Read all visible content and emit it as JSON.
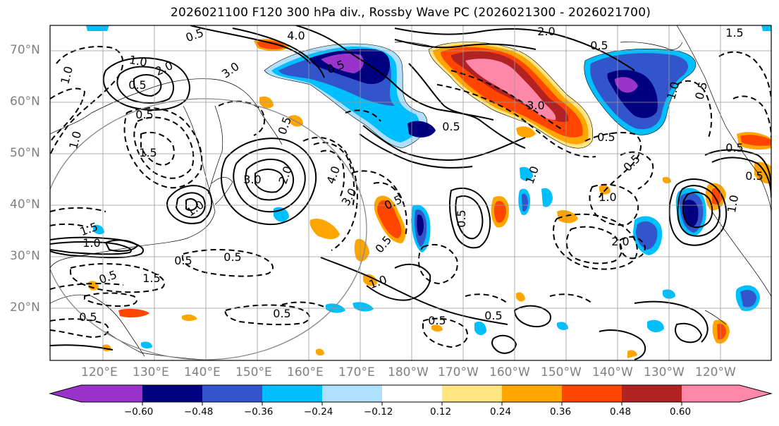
{
  "title": "2026021100 F120 300 hPa div., Rossby Wave PC (2026021300 - 2026021700)",
  "lat_labels": [
    "70°N",
    "60°N",
    "50°N",
    "40°N",
    "30°N",
    "20°N"
  ],
  "lon_labels": [
    "120°E",
    "130°E",
    "140°E",
    "150°E",
    "160°E",
    "170°E",
    "180°W",
    "170°W",
    "160°W",
    "150°W",
    "140°W",
    "130°W",
    "120°W"
  ],
  "colorbar": {
    "ticks": [
      "−0.60",
      "−0.48",
      "−0.36",
      "−0.24",
      "−0.12",
      "0.12",
      "0.24",
      "0.36",
      "0.48",
      "0.60"
    ],
    "colors": [
      "#9933cc",
      "#000080",
      "#3355cc",
      "#00bfff",
      "#b0e0ff",
      "#ffffff",
      "#ffe680",
      "#ffa500",
      "#ff4500",
      "#b22222",
      "#ff88aa"
    ]
  },
  "contour_labels": [
    "4.0",
    "2.0",
    "0.5",
    "1.5",
    "1.0",
    "2.0",
    "0.5",
    "3.0",
    "0.5",
    "1.0",
    "1.5",
    "0.5",
    "1.0",
    "3.0",
    "2.0",
    "0.5",
    "3.0",
    "4.0",
    "0.5",
    "0.5",
    "0.5",
    "0.5",
    "1.0",
    "0.5",
    "1.0",
    "0.5",
    "3.0",
    "0.5",
    "1.0",
    "1.0",
    "2.0",
    "0.5",
    "1.0",
    "0.5",
    "0.5",
    "0.5",
    "0.5",
    "0.5",
    "1.0",
    "0.5",
    "1.5",
    "0.5",
    "0.5",
    "1.0",
    "1.5",
    "0.5"
  ]
}
